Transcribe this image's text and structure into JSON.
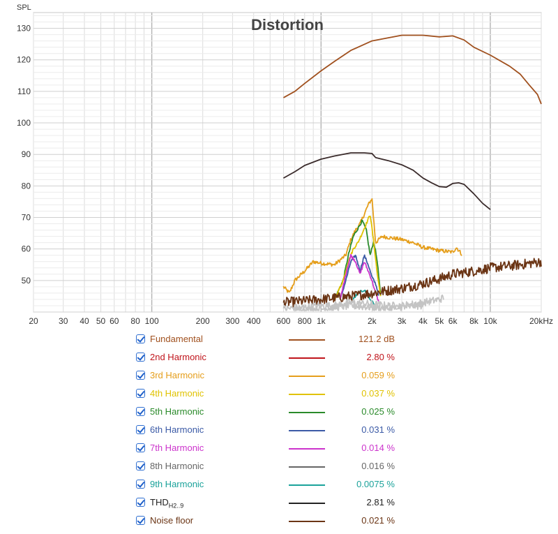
{
  "chart_data": {
    "type": "line",
    "title": "Distortion",
    "ylabel": "SPL",
    "xlabel": "",
    "x_unit_label": "kHz",
    "x_scale": "log",
    "xlim": [
      20,
      20000
    ],
    "ylim": [
      40,
      135
    ],
    "grid": true,
    "y_ticks": [
      50,
      60,
      70,
      80,
      90,
      100,
      110,
      120,
      130
    ],
    "x_ticks": [
      {
        "v": 20,
        "label": "20"
      },
      {
        "v": 30,
        "label": "30"
      },
      {
        "v": 40,
        "label": "40"
      },
      {
        "v": 50,
        "label": "50"
      },
      {
        "v": 60,
        "label": "60"
      },
      {
        "v": 80,
        "label": "80"
      },
      {
        "v": 100,
        "label": "100"
      },
      {
        "v": 200,
        "label": "200"
      },
      {
        "v": 300,
        "label": "300"
      },
      {
        "v": 400,
        "label": "400"
      },
      {
        "v": 600,
        "label": "600"
      },
      {
        "v": 800,
        "label": "800"
      },
      {
        "v": 1000,
        "label": "1k"
      },
      {
        "v": 2000,
        "label": "2k"
      },
      {
        "v": 3000,
        "label": "3k"
      },
      {
        "v": 4000,
        "label": "4k"
      },
      {
        "v": 5000,
        "label": "5k"
      },
      {
        "v": 6000,
        "label": "6k"
      },
      {
        "v": 8000,
        "label": "8k"
      },
      {
        "v": 10000,
        "label": "10k"
      },
      {
        "v": 20000,
        "label": "20kHz"
      }
    ],
    "series": [
      {
        "name": "Fundamental",
        "color": "#a0501e",
        "noise": 0,
        "points": [
          [
            600,
            108
          ],
          [
            700,
            110
          ],
          [
            800,
            112.5
          ],
          [
            1000,
            116.5
          ],
          [
            1200,
            119.5
          ],
          [
            1500,
            123
          ],
          [
            2000,
            126
          ],
          [
            2500,
            127
          ],
          [
            3000,
            127.8
          ],
          [
            4000,
            127.8
          ],
          [
            5000,
            127.3
          ],
          [
            6000,
            127.6
          ],
          [
            7000,
            126.3
          ],
          [
            8000,
            124
          ],
          [
            10000,
            121.5
          ],
          [
            13000,
            118
          ],
          [
            15000,
            115.5
          ],
          [
            17000,
            112
          ],
          [
            19000,
            109
          ],
          [
            20000,
            106
          ]
        ]
      },
      {
        "name": "THD",
        "color": "#3a2b2b",
        "noise": 0,
        "points": [
          [
            600,
            82.5
          ],
          [
            700,
            84.5
          ],
          [
            800,
            86.5
          ],
          [
            1000,
            88.5
          ],
          [
            1200,
            89.5
          ],
          [
            1500,
            90.5
          ],
          [
            1800,
            90.5
          ],
          [
            2000,
            90.3
          ],
          [
            2100,
            89
          ],
          [
            2500,
            88
          ],
          [
            3000,
            86.7
          ],
          [
            3500,
            85
          ],
          [
            4000,
            82.5
          ],
          [
            4500,
            81
          ],
          [
            5000,
            79.8
          ],
          [
            5500,
            79.6
          ],
          [
            6000,
            80.8
          ],
          [
            6500,
            81
          ],
          [
            7000,
            80.5
          ],
          [
            8000,
            77.5
          ],
          [
            9000,
            74.5
          ],
          [
            10000,
            72.5
          ]
        ]
      },
      {
        "name": "3rd Harmonic",
        "color": "#e59e1b",
        "noise": 0.6,
        "points": [
          [
            600,
            48
          ],
          [
            650,
            46
          ],
          [
            700,
            50
          ],
          [
            800,
            53
          ],
          [
            900,
            56
          ],
          [
            1000,
            55.5
          ],
          [
            1200,
            55
          ],
          [
            1400,
            58
          ],
          [
            1500,
            63
          ],
          [
            1600,
            66
          ],
          [
            1700,
            68
          ],
          [
            1800,
            71
          ],
          [
            1900,
            74
          ],
          [
            2000,
            76
          ],
          [
            2100,
            62
          ],
          [
            2300,
            64
          ],
          [
            2600,
            63.5
          ],
          [
            3000,
            63
          ],
          [
            3500,
            62
          ],
          [
            4000,
            60.5
          ],
          [
            5000,
            59.5
          ],
          [
            6000,
            59
          ],
          [
            6300,
            60.5
          ],
          [
            6800,
            58.3
          ]
        ]
      },
      {
        "name": "5th Harmonic",
        "color": "#2a8a2a",
        "noise": 0.4,
        "points": [
          [
            1200,
            44
          ],
          [
            1350,
            50
          ],
          [
            1450,
            58
          ],
          [
            1550,
            64
          ],
          [
            1650,
            66.5
          ],
          [
            1750,
            69
          ],
          [
            1850,
            66
          ],
          [
            1950,
            58
          ],
          [
            2050,
            62.5
          ],
          [
            2150,
            56
          ],
          [
            2250,
            45
          ]
        ]
      },
      {
        "name": "4th Harmonic",
        "color": "#e0c200",
        "noise": 0.4,
        "points": [
          [
            1200,
            44
          ],
          [
            1350,
            50
          ],
          [
            1450,
            56
          ],
          [
            1550,
            60
          ],
          [
            1650,
            62
          ],
          [
            1750,
            65
          ],
          [
            1850,
            68
          ],
          [
            1950,
            71
          ],
          [
            2050,
            62
          ],
          [
            2150,
            52
          ],
          [
            2250,
            45
          ]
        ]
      },
      {
        "name": "6th Harmonic",
        "color": "#3b5aa6",
        "noise": 0.4,
        "points": [
          [
            1300,
            44
          ],
          [
            1400,
            50
          ],
          [
            1500,
            56
          ],
          [
            1600,
            58
          ],
          [
            1700,
            53
          ],
          [
            1800,
            58
          ],
          [
            1900,
            55
          ],
          [
            2000,
            51
          ],
          [
            2100,
            49
          ],
          [
            2200,
            45
          ]
        ]
      },
      {
        "name": "7th Harmonic",
        "color": "#cc33cc",
        "noise": 0.4,
        "points": [
          [
            1300,
            44
          ],
          [
            1400,
            52
          ],
          [
            1500,
            58
          ],
          [
            1600,
            56
          ],
          [
            1700,
            52
          ],
          [
            1800,
            56
          ],
          [
            1900,
            53
          ],
          [
            2000,
            50
          ],
          [
            2100,
            46
          ],
          [
            2200,
            43
          ]
        ]
      },
      {
        "name": "9th Harmonic",
        "color": "#1aa29a",
        "noise": 0.4,
        "points": [
          [
            1500,
            43
          ],
          [
            1650,
            46
          ],
          [
            1800,
            47
          ],
          [
            1950,
            44
          ],
          [
            2100,
            42
          ]
        ]
      },
      {
        "name": "Noise floor",
        "color": "#6b3515",
        "noise": 1.6,
        "points": [
          [
            600,
            43
          ],
          [
            800,
            43.5
          ],
          [
            1000,
            44
          ],
          [
            1500,
            45
          ],
          [
            2000,
            46
          ],
          [
            3000,
            47.5
          ],
          [
            4000,
            49
          ],
          [
            5000,
            50.5
          ],
          [
            6000,
            52
          ],
          [
            8000,
            53
          ],
          [
            10000,
            54
          ],
          [
            15000,
            55
          ],
          [
            20000,
            56
          ]
        ]
      },
      {
        "name": "8th Harmonic",
        "color": "#c4c4c4",
        "noise": 1.2,
        "points": [
          [
            600,
            41
          ],
          [
            800,
            41.5
          ],
          [
            1000,
            42
          ],
          [
            1200,
            42
          ],
          [
            1500,
            43
          ],
          [
            2000,
            42.5
          ],
          [
            2500,
            42
          ],
          [
            3000,
            42
          ],
          [
            3500,
            42.5
          ],
          [
            4000,
            43
          ],
          [
            4500,
            43.5
          ],
          [
            5000,
            44
          ],
          [
            5300,
            44.5
          ]
        ]
      },
      {
        "name": "8th Harmonic",
        "color": "#c4c4c4",
        "noise": 1.2,
        "points": [
          [
            700,
            40.5
          ],
          [
            1000,
            41
          ],
          [
            1500,
            42
          ],
          [
            2000,
            41.5
          ],
          [
            2600,
            41
          ],
          [
            3000,
            41.5
          ],
          [
            3500,
            42
          ],
          [
            4000,
            42
          ]
        ]
      }
    ]
  },
  "legend": [
    {
      "label": "Fundamental",
      "sub": "",
      "value": "121.2 dB",
      "color": "#a0501e"
    },
    {
      "label": "2nd Harmonic",
      "sub": "",
      "value": "2.80 %",
      "color": "#c0141b"
    },
    {
      "label": "3rd Harmonic",
      "sub": "",
      "value": "0.059 %",
      "color": "#e59e1b"
    },
    {
      "label": "4th Harmonic",
      "sub": "",
      "value": "0.037 %",
      "color": "#e0c200"
    },
    {
      "label": "5th Harmonic",
      "sub": "",
      "value": "0.025 %",
      "color": "#2a8a2a"
    },
    {
      "label": "6th Harmonic",
      "sub": "",
      "value": "0.031 %",
      "color": "#3b5aa6"
    },
    {
      "label": "7th Harmonic",
      "sub": "",
      "value": "0.014 %",
      "color": "#cc33cc"
    },
    {
      "label": "8th Harmonic",
      "sub": "",
      "value": "0.016 %",
      "color": "#666666"
    },
    {
      "label": "9th Harmonic",
      "sub": "",
      "value": "0.0075 %",
      "color": "#1aa29a"
    },
    {
      "label": "THD",
      "sub": "H2..9",
      "value": "2.81 %",
      "color": "#222222"
    },
    {
      "label": "Noise floor",
      "sub": "",
      "value": "0.021 %",
      "color": "#6b3515"
    }
  ]
}
